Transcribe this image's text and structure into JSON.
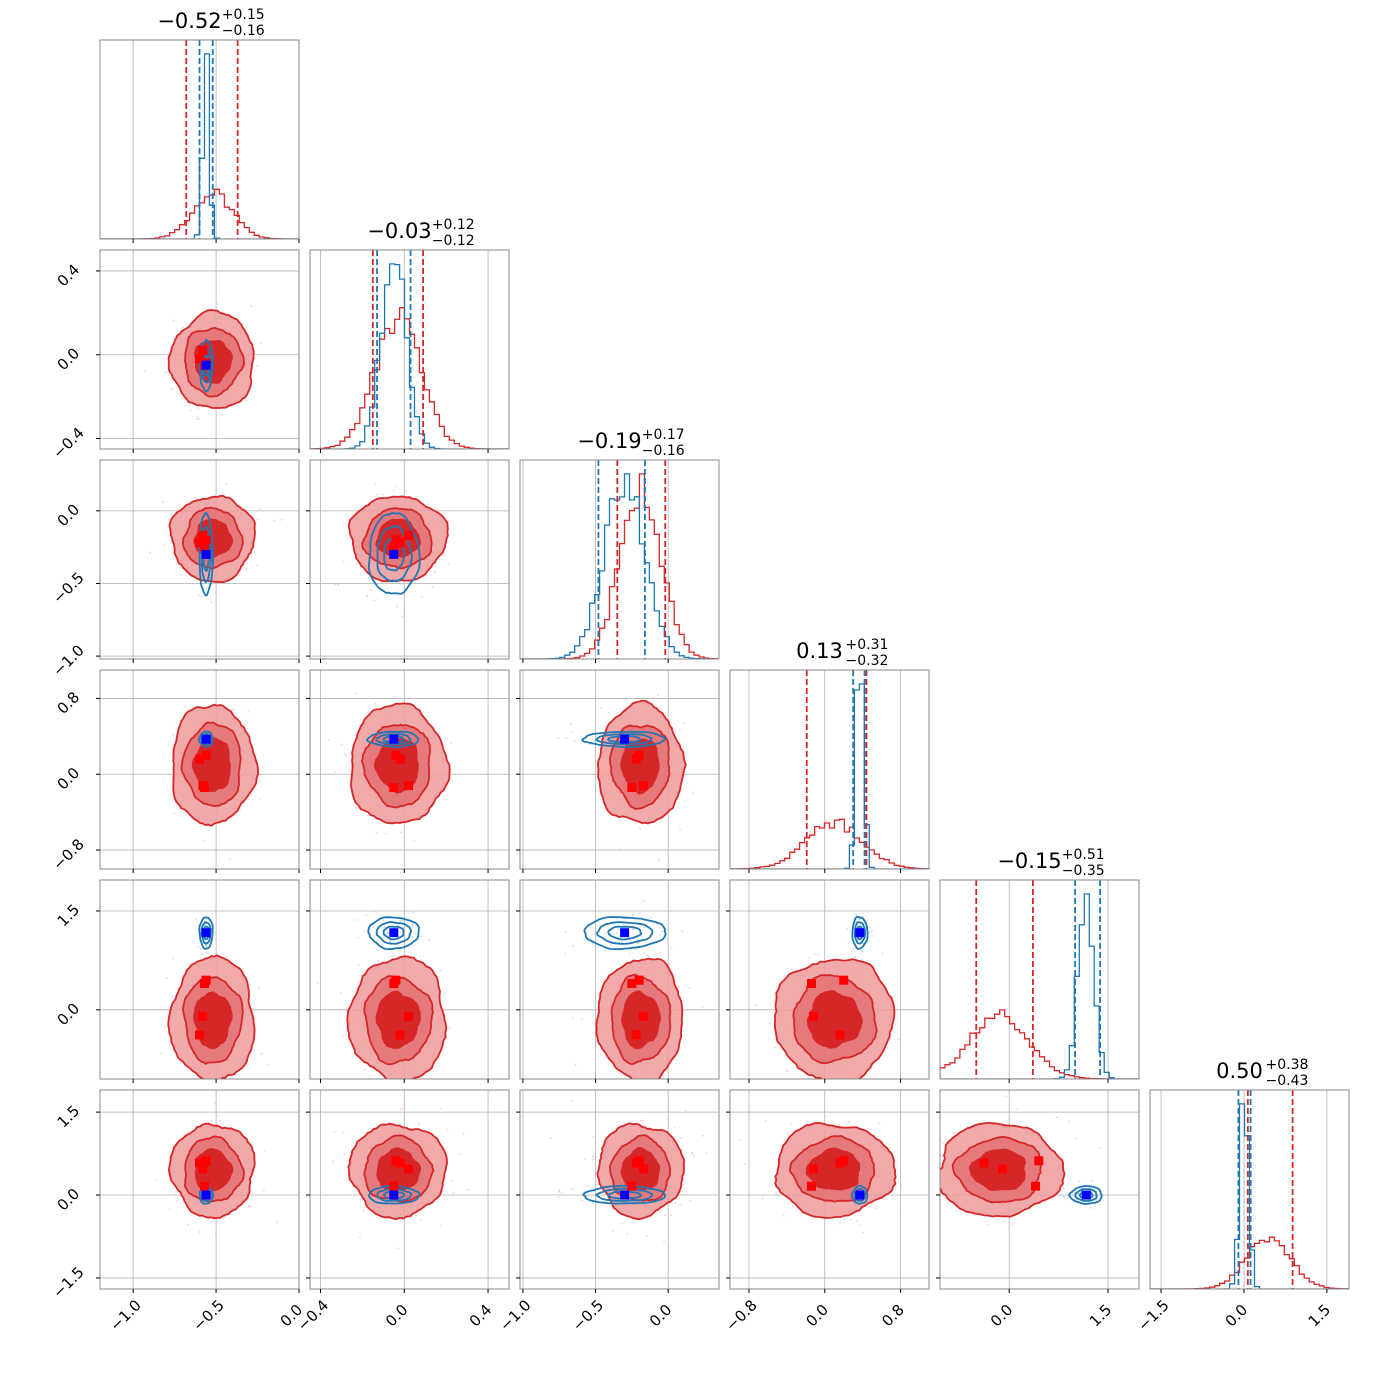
{
  "chart_data": {
    "type": "corner",
    "n_params": 6,
    "colors": {
      "red": "#d62728",
      "red_light": "#ee9a9b",
      "blue": "#1f77b4",
      "red_marker": "#ff0000",
      "blue_marker": "#0000ff"
    },
    "params": [
      {
        "title_value": "−0.52",
        "title_plus": "+0.15",
        "title_minus": "−0.16",
        "lim": [
          -1.2,
          0.0
        ],
        "ticks": [
          -1.0,
          -0.5,
          0.0
        ],
        "tick_labels": [
          "−1.0",
          "−0.5",
          "0.0"
        ],
        "red": {
          "mean": -0.52,
          "sd": 0.12,
          "q": [
            -0.68,
            -0.37
          ]
        },
        "blue": {
          "mean": -0.56,
          "sd": 0.02,
          "q": [
            -0.6,
            -0.52
          ]
        },
        "truth": -0.56
      },
      {
        "title_value": "−0.03",
        "title_plus": "+0.12",
        "title_minus": "−0.12",
        "lim": [
          -0.45,
          0.5
        ],
        "ticks": [
          -0.4,
          0.0,
          0.4
        ],
        "tick_labels": [
          "−0.4",
          "0.0",
          "0.4"
        ],
        "red": {
          "mean": -0.03,
          "sd": 0.11,
          "q": [
            -0.15,
            0.09
          ]
        },
        "blue": {
          "mean": -0.05,
          "sd": 0.06,
          "q": [
            -0.13,
            0.03
          ]
        },
        "truth": -0.05
      },
      {
        "title_value": "−0.19",
        "title_plus": "+0.17",
        "title_minus": "−0.16",
        "lim": [
          -1.02,
          0.35
        ],
        "ticks": [
          -1.0,
          -0.5,
          0.0
        ],
        "tick_labels": [
          "−1.0",
          "−0.5",
          "0.0"
        ],
        "red": {
          "mean": -0.19,
          "sd": 0.14,
          "q": [
            -0.35,
            -0.02
          ]
        },
        "blue": {
          "mean": -0.3,
          "sd": 0.14,
          "q": [
            -0.48,
            -0.16
          ]
        },
        "truth": -0.3
      },
      {
        "title_value": "0.13",
        "title_plus": "+0.31",
        "title_minus": "−0.32",
        "lim": [
          -1.0,
          1.1
        ],
        "ticks": [
          -0.8,
          0.0,
          0.8
        ],
        "tick_labels": [
          "−0.8",
          "0.0",
          "0.8"
        ],
        "red": {
          "mean": 0.1,
          "sd": 0.3,
          "q": [
            -0.19,
            0.44
          ]
        },
        "blue": {
          "mean": 0.37,
          "sd": 0.04,
          "q": [
            0.3,
            0.42
          ]
        },
        "truth": 0.37
      },
      {
        "title_value": "−0.15",
        "title_plus": "+0.51",
        "title_minus": "−0.35",
        "lim": [
          -1.05,
          1.97
        ],
        "ticks": [
          0.0,
          1.5
        ],
        "tick_labels": [
          "0.0",
          "1.5"
        ],
        "red": {
          "mean": -0.15,
          "sd": 0.45,
          "q": [
            -0.5,
            0.36
          ]
        },
        "blue": {
          "mean": 1.17,
          "sd": 0.12,
          "q": [
            1.0,
            1.38
          ]
        },
        "truth": 1.17
      },
      {
        "title_value": "0.50",
        "title_plus": "+0.38",
        "title_minus": "−0.43",
        "lim": [
          -1.7,
          1.9
        ],
        "ticks": [
          -1.5,
          0.0,
          1.5
        ],
        "tick_labels": [
          "−1.5",
          "0.0",
          "1.5"
        ],
        "red": {
          "mean": 0.45,
          "sd": 0.4,
          "q": [
            0.07,
            0.88
          ]
        },
        "blue": {
          "mean": 0.0,
          "sd": 0.08,
          "q": [
            -0.1,
            0.12
          ]
        },
        "truth": 0.0
      }
    ],
    "red_points": [
      [
        -0.56,
        -0.04,
        -0.2,
        0.2,
        0.45,
        0.62
      ],
      [
        -0.58,
        0.02,
        -0.17,
        -0.12,
        -0.1,
        0.47
      ],
      [
        -0.6,
        -0.02,
        -0.22,
        0.16,
        -0.38,
        0.58
      ],
      [
        -0.57,
        -0.05,
        -0.25,
        -0.14,
        0.4,
        0.16
      ]
    ],
    "blue_point": [
      -0.56,
      -0.05,
      -0.3,
      0.37,
      1.17,
      0.0
    ],
    "grid": true
  }
}
